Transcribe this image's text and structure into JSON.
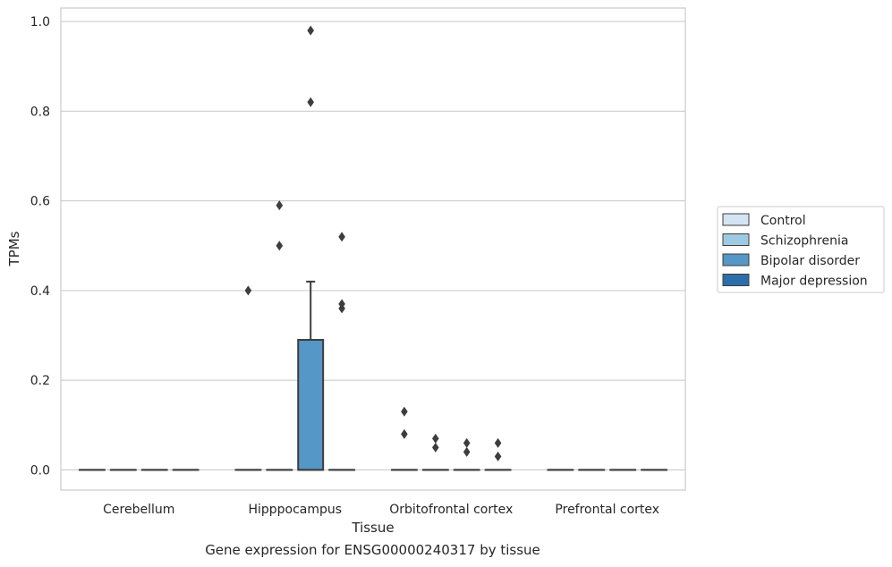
{
  "chart_data": {
    "type": "box",
    "xlabel": "Tissue",
    "ylabel": "TPMs",
    "ylim": [
      -0.045,
      1.03
    ],
    "yticks": [
      0.0,
      0.2,
      0.4,
      0.6,
      0.8,
      1.0
    ],
    "ytick_labels": [
      "0.0",
      "0.2",
      "0.4",
      "0.6",
      "0.8",
      "1.0"
    ],
    "grid": "horizontal",
    "legend_position": "right",
    "categories": [
      "Cerebellum",
      "Hipppocampus",
      "Orbitofrontal cortex",
      "Prefrontal cortex"
    ],
    "series": [
      {
        "name": "Control",
        "color": "#d3e4f3"
      },
      {
        "name": "Schizophrenia",
        "color": "#9ecae1"
      },
      {
        "name": "Bipolar disorder",
        "color": "#5597c6"
      },
      {
        "name": "Major depression",
        "color": "#2e6ea8"
      }
    ],
    "boxes": [
      {
        "category": "Cerebellum",
        "series": "Control",
        "q1": 0,
        "median": 0,
        "q3": 0,
        "whisker_low": 0,
        "whisker_high": 0
      },
      {
        "category": "Cerebellum",
        "series": "Schizophrenia",
        "q1": 0,
        "median": 0,
        "q3": 0,
        "whisker_low": 0,
        "whisker_high": 0
      },
      {
        "category": "Cerebellum",
        "series": "Bipolar disorder",
        "q1": 0,
        "median": 0,
        "q3": 0,
        "whisker_low": 0,
        "whisker_high": 0
      },
      {
        "category": "Cerebellum",
        "series": "Major depression",
        "q1": 0,
        "median": 0,
        "q3": 0,
        "whisker_low": 0,
        "whisker_high": 0
      },
      {
        "category": "Hipppocampus",
        "series": "Control",
        "q1": 0,
        "median": 0,
        "q3": 0,
        "whisker_low": 0,
        "whisker_high": 0,
        "outliers": [
          0.4
        ]
      },
      {
        "category": "Hipppocampus",
        "series": "Schizophrenia",
        "q1": 0,
        "median": 0,
        "q3": 0,
        "whisker_low": 0,
        "whisker_high": 0,
        "outliers": [
          0.5,
          0.59
        ]
      },
      {
        "category": "Hipppocampus",
        "series": "Bipolar disorder",
        "q1": 0,
        "median": 0,
        "q3": 0.29,
        "whisker_low": 0,
        "whisker_high": 0.42,
        "outliers": [
          0.82,
          0.98
        ]
      },
      {
        "category": "Hipppocampus",
        "series": "Major depression",
        "q1": 0,
        "median": 0,
        "q3": 0,
        "whisker_low": 0,
        "whisker_high": 0,
        "outliers": [
          0.36,
          0.37,
          0.52
        ]
      },
      {
        "category": "Orbitofrontal cortex",
        "series": "Control",
        "q1": 0,
        "median": 0,
        "q3": 0,
        "whisker_low": 0,
        "whisker_high": 0,
        "outliers": [
          0.08,
          0.13
        ]
      },
      {
        "category": "Orbitofrontal cortex",
        "series": "Schizophrenia",
        "q1": 0,
        "median": 0,
        "q3": 0,
        "whisker_low": 0,
        "whisker_high": 0,
        "outliers": [
          0.05,
          0.07
        ]
      },
      {
        "category": "Orbitofrontal cortex",
        "series": "Bipolar disorder",
        "q1": 0,
        "median": 0,
        "q3": 0,
        "whisker_low": 0,
        "whisker_high": 0,
        "outliers": [
          0.04,
          0.06
        ]
      },
      {
        "category": "Orbitofrontal cortex",
        "series": "Major depression",
        "q1": 0,
        "median": 0,
        "q3": 0,
        "whisker_low": 0,
        "whisker_high": 0,
        "outliers": [
          0.03,
          0.06
        ]
      },
      {
        "category": "Prefrontal cortex",
        "series": "Control",
        "q1": 0,
        "median": 0,
        "q3": 0,
        "whisker_low": 0,
        "whisker_high": 0
      },
      {
        "category": "Prefrontal cortex",
        "series": "Schizophrenia",
        "q1": 0,
        "median": 0,
        "q3": 0,
        "whisker_low": 0,
        "whisker_high": 0
      },
      {
        "category": "Prefrontal cortex",
        "series": "Bipolar disorder",
        "q1": 0,
        "median": 0,
        "q3": 0,
        "whisker_low": 0,
        "whisker_high": 0
      },
      {
        "category": "Prefrontal cortex",
        "series": "Major depression",
        "q1": 0,
        "median": 0,
        "q3": 0,
        "whisker_low": 0,
        "whisker_high": 0
      }
    ]
  },
  "caption": "Gene expression for ENSG00000240317 by tissue"
}
